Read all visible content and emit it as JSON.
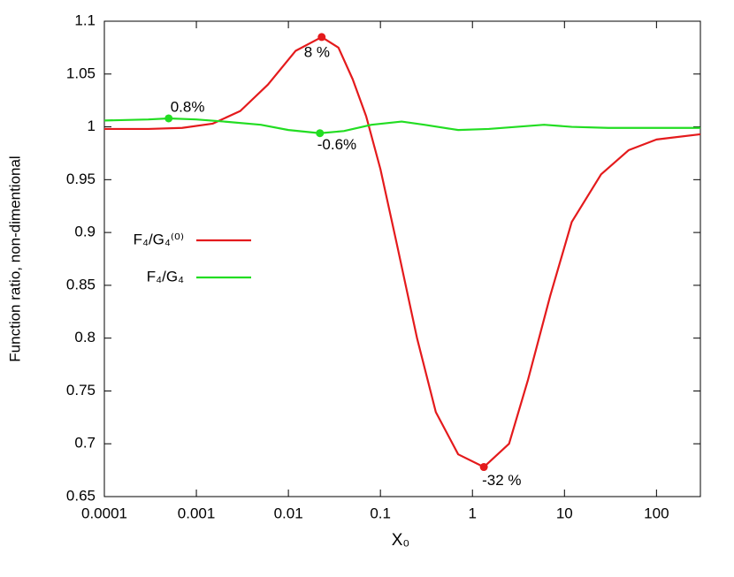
{
  "chart_data": {
    "type": "line",
    "x_label": "X₀",
    "y_label": "Function ratio, non-dimentional",
    "xlim": [
      0.0001,
      300
    ],
    "xticks": [
      0.0001,
      0.001,
      0.01,
      0.1,
      1,
      10,
      100
    ],
    "xscale": "log",
    "ylim": [
      0.65,
      1.1
    ],
    "yticks": [
      0.65,
      0.7,
      0.75,
      0.8,
      0.85,
      0.9,
      0.95,
      1,
      1.05,
      1.1
    ],
    "grid": false,
    "legend": "left",
    "series": [
      {
        "name": "F₄/G₄⁽⁰⁾",
        "color": "#e41a1c",
        "x": [
          0.0001,
          0.0003,
          0.0007,
          0.0015,
          0.003,
          0.006,
          0.012,
          0.023,
          0.035,
          0.05,
          0.07,
          0.1,
          0.15,
          0.25,
          0.4,
          0.7,
          1.33,
          2.5,
          4,
          7,
          12,
          25,
          50,
          100,
          300
        ],
        "values": [
          0.998,
          0.998,
          0.999,
          1.003,
          1.015,
          1.04,
          1.072,
          1.085,
          1.075,
          1.045,
          1.01,
          0.96,
          0.89,
          0.8,
          0.73,
          0.69,
          0.678,
          0.7,
          0.76,
          0.84,
          0.91,
          0.955,
          0.978,
          0.988,
          0.993
        ]
      },
      {
        "name": "F₄/G₄",
        "color": "#22dd22",
        "x": [
          0.0001,
          0.0003,
          0.0005,
          0.001,
          0.002,
          0.005,
          0.01,
          0.022,
          0.04,
          0.08,
          0.17,
          0.3,
          0.7,
          1.5,
          3,
          6,
          12,
          30,
          100,
          300
        ],
        "values": [
          1.006,
          1.007,
          1.008,
          1.007,
          1.005,
          1.002,
          0.997,
          0.994,
          0.996,
          1.002,
          1.005,
          1.002,
          0.997,
          0.998,
          1.0,
          1.002,
          1.0,
          0.999,
          0.999,
          0.999
        ]
      }
    ],
    "annotations": [
      {
        "text": "8 %",
        "x": 0.023,
        "y": 1.085,
        "color": "#e41a1c"
      },
      {
        "text": "0.8%",
        "x": 0.0005,
        "y": 1.008,
        "color": "#22dd22"
      },
      {
        "text": "-0.6%",
        "x": 0.022,
        "y": 0.994,
        "color": "#22dd22"
      },
      {
        "text": "-32 %",
        "x": 1.33,
        "y": 0.678,
        "color": "#e41a1c"
      }
    ]
  }
}
